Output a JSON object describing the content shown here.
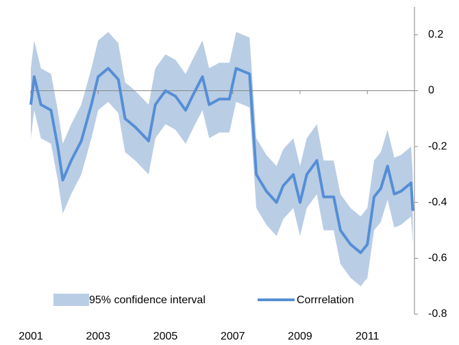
{
  "chart_data": {
    "type": "line",
    "x": [
      2001.0,
      2001.1,
      2001.3,
      2001.6,
      2001.8,
      2001.95,
      2002.2,
      2002.5,
      2002.8,
      2003.0,
      2003.3,
      2003.6,
      2003.8,
      2004.1,
      2004.5,
      2004.7,
      2005.0,
      2005.3,
      2005.6,
      2005.8,
      2006.1,
      2006.3,
      2006.6,
      2006.9,
      2007.1,
      2007.5,
      2007.7,
      2008.0,
      2008.3,
      2008.5,
      2008.8,
      2009.0,
      2009.2,
      2009.5,
      2009.7,
      2010.0,
      2010.2,
      2010.5,
      2010.8,
      2011.0,
      2011.2,
      2011.4,
      2011.6,
      2011.8,
      2012.0,
      2012.3,
      2012.35
    ],
    "series": [
      {
        "name": "95% confidence interval",
        "color": "#b9cde5",
        "upper": [
          0.08,
          0.18,
          0.08,
          0.06,
          -0.07,
          -0.19,
          -0.12,
          -0.05,
          0.08,
          0.18,
          0.21,
          0.17,
          0.03,
          0.0,
          -0.05,
          0.08,
          0.13,
          0.11,
          0.06,
          0.11,
          0.18,
          0.08,
          0.1,
          0.1,
          0.21,
          0.19,
          -0.17,
          -0.23,
          -0.27,
          -0.21,
          -0.17,
          -0.27,
          -0.17,
          -0.12,
          -0.25,
          -0.25,
          -0.37,
          -0.42,
          -0.45,
          -0.42,
          -0.25,
          -0.22,
          -0.14,
          -0.24,
          -0.23,
          -0.2,
          -0.3
        ],
        "lower": [
          -0.17,
          -0.07,
          -0.17,
          -0.19,
          -0.32,
          -0.44,
          -0.37,
          -0.3,
          -0.17,
          -0.07,
          -0.04,
          -0.08,
          -0.22,
          -0.25,
          -0.3,
          -0.17,
          -0.12,
          -0.14,
          -0.19,
          -0.14,
          -0.07,
          -0.17,
          -0.15,
          -0.15,
          -0.04,
          -0.06,
          -0.42,
          -0.48,
          -0.52,
          -0.46,
          -0.42,
          -0.52,
          -0.42,
          -0.37,
          -0.5,
          -0.5,
          -0.62,
          -0.67,
          -0.7,
          -0.67,
          -0.5,
          -0.47,
          -0.39,
          -0.49,
          -0.48,
          -0.45,
          -0.55
        ]
      },
      {
        "name": "Corrrelation",
        "color": "#558ed5",
        "values": [
          -0.05,
          0.05,
          -0.05,
          -0.07,
          -0.2,
          -0.32,
          -0.25,
          -0.18,
          -0.05,
          0.05,
          0.08,
          0.04,
          -0.1,
          -0.13,
          -0.18,
          -0.05,
          0.0,
          -0.02,
          -0.07,
          -0.02,
          0.05,
          -0.05,
          -0.03,
          -0.03,
          0.08,
          0.06,
          -0.3,
          -0.36,
          -0.4,
          -0.34,
          -0.3,
          -0.4,
          -0.3,
          -0.25,
          -0.38,
          -0.38,
          -0.5,
          -0.55,
          -0.58,
          -0.55,
          -0.38,
          -0.35,
          -0.27,
          -0.37,
          -0.36,
          -0.33,
          -0.43
        ]
      }
    ],
    "xlim": [
      2001,
      2012.4
    ],
    "xticks": [
      2001,
      2003,
      2005,
      2007,
      2009,
      2011
    ],
    "ylim": [
      -0.8,
      0.3
    ],
    "yticks": [
      0.2,
      0,
      -0.2,
      -0.4,
      -0.6,
      -0.8
    ],
    "yaxis_side": "right",
    "legend": "bottom"
  }
}
